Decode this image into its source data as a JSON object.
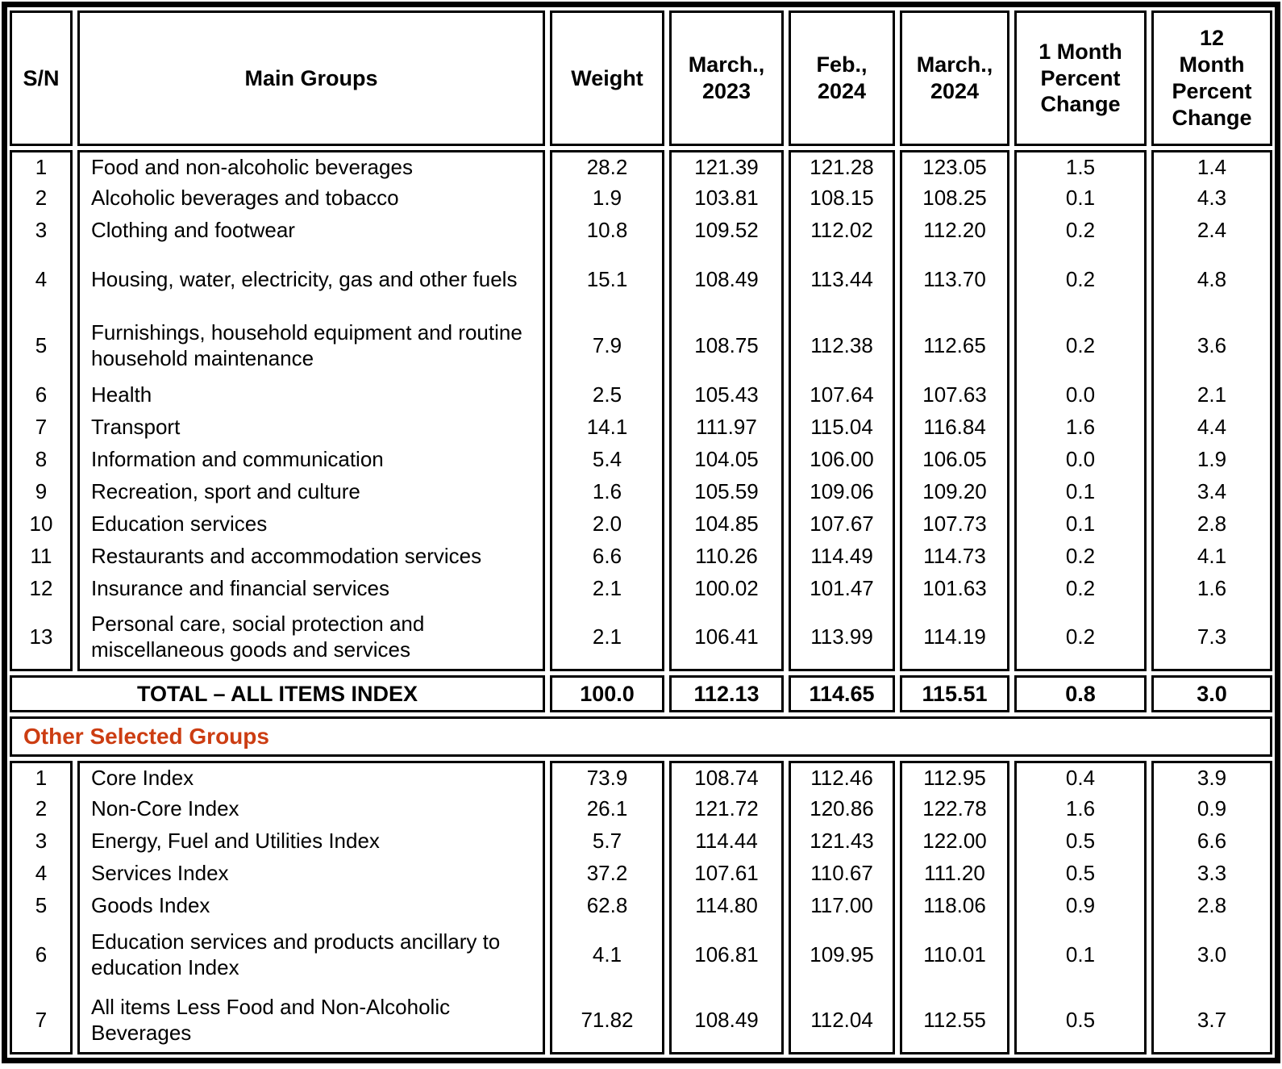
{
  "table": {
    "header": {
      "sn": "S/N",
      "main_groups": "Main Groups",
      "weight": "Weight",
      "mar2023": "March.,\n2023",
      "feb2024": "Feb.,\n2024",
      "mar2024": "March.,\n2024",
      "chg1m": "1 Month\nPercent\nChange",
      "chg12m": "12\nMonth\nPercent\nChange"
    },
    "main_rows": [
      {
        "sn": "1",
        "name": "Food and non-alcoholic beverages",
        "weight": "28.2",
        "mar2023": "121.39",
        "feb2024": "121.28",
        "mar2024": "123.05",
        "chg1m": "1.5",
        "chg12m": "1.4",
        "lines": 1
      },
      {
        "sn": "2",
        "name": "Alcoholic beverages and tobacco",
        "weight": "1.9",
        "mar2023": "103.81",
        "feb2024": "108.15",
        "mar2024": "108.25",
        "chg1m": "0.1",
        "chg12m": "4.3",
        "lines": 1
      },
      {
        "sn": "3",
        "name": "Clothing and footwear",
        "weight": "10.8",
        "mar2023": "109.52",
        "feb2024": "112.02",
        "mar2024": "112.20",
        "chg1m": "0.2",
        "chg12m": "2.4",
        "lines": 1
      },
      {
        "sn": "4",
        "name": "Housing, water, electricity, gas and other fuels",
        "weight": "15.1",
        "mar2023": "108.49",
        "feb2024": "113.44",
        "mar2024": "113.70",
        "chg1m": "0.2",
        "chg12m": "4.8",
        "lines": 2
      },
      {
        "sn": "5",
        "name": "Furnishings, household equipment and routine household maintenance",
        "weight": "7.9",
        "mar2023": "108.75",
        "feb2024": "112.38",
        "mar2024": "112.65",
        "chg1m": "0.2",
        "chg12m": "3.6",
        "lines": 2
      },
      {
        "sn": "6",
        "name": "Health",
        "weight": "2.5",
        "mar2023": "105.43",
        "feb2024": "107.64",
        "mar2024": "107.63",
        "chg1m": "0.0",
        "chg12m": "2.1",
        "lines": 1
      },
      {
        "sn": "7",
        "name": "Transport",
        "weight": "14.1",
        "mar2023": "111.97",
        "feb2024": "115.04",
        "mar2024": "116.84",
        "chg1m": "1.6",
        "chg12m": "4.4",
        "lines": 1
      },
      {
        "sn": "8",
        "name": "Information and communication",
        "weight": "5.4",
        "mar2023": "104.05",
        "feb2024": "106.00",
        "mar2024": "106.05",
        "chg1m": "0.0",
        "chg12m": "1.9",
        "lines": 1
      },
      {
        "sn": "9",
        "name": "Recreation, sport and culture",
        "weight": "1.6",
        "mar2023": "105.59",
        "feb2024": "109.06",
        "mar2024": "109.20",
        "chg1m": "0.1",
        "chg12m": "3.4",
        "lines": 1
      },
      {
        "sn": "10",
        "name": "Education services",
        "weight": "2.0",
        "mar2023": "104.85",
        "feb2024": "107.67",
        "mar2024": "107.73",
        "chg1m": "0.1",
        "chg12m": "2.8",
        "lines": 1
      },
      {
        "sn": "11",
        "name": "Restaurants and accommodation services",
        "weight": "6.6",
        "mar2023": "110.26",
        "feb2024": "114.49",
        "mar2024": "114.73",
        "chg1m": "0.2",
        "chg12m": "4.1",
        "lines": 1
      },
      {
        "sn": "12",
        "name": "Insurance and financial services",
        "weight": "2.1",
        "mar2023": "100.02",
        "feb2024": "101.47",
        "mar2024": "101.63",
        "chg1m": "0.2",
        "chg12m": "1.6",
        "lines": 1
      },
      {
        "sn": "13",
        "name": "Personal care, social protection and miscellaneous goods and services",
        "weight": "2.1",
        "mar2023": "106.41",
        "feb2024": "113.99",
        "mar2024": "114.19",
        "chg1m": "0.2",
        "chg12m": "7.3",
        "lines": 2
      }
    ],
    "total_row": {
      "label": "TOTAL – ALL ITEMS INDEX",
      "weight": "100.0",
      "mar2023": "112.13",
      "feb2024": "114.65",
      "mar2024": "115.51",
      "chg1m": "0.8",
      "chg12m": "3.0"
    },
    "section_title": "Other Selected Groups",
    "other_rows": [
      {
        "sn": "1",
        "name": "Core Index",
        "weight": "73.9",
        "mar2023": "108.74",
        "feb2024": "112.46",
        "mar2024": "112.95",
        "chg1m": "0.4",
        "chg12m": "3.9",
        "lines": 1
      },
      {
        "sn": "2",
        "name": "Non-Core Index",
        "weight": "26.1",
        "mar2023": "121.72",
        "feb2024": "120.86",
        "mar2024": "122.78",
        "chg1m": "1.6",
        "chg12m": "0.9",
        "lines": 1
      },
      {
        "sn": "3",
        "name": "Energy, Fuel and Utilities Index",
        "weight": "5.7",
        "mar2023": "114.44",
        "feb2024": "121.43",
        "mar2024": "122.00",
        "chg1m": "0.5",
        "chg12m": "6.6",
        "lines": 1
      },
      {
        "sn": "4",
        "name": "Services Index",
        "weight": "37.2",
        "mar2023": "107.61",
        "feb2024": "110.67",
        "mar2024": "111.20",
        "chg1m": "0.5",
        "chg12m": "3.3",
        "lines": 1
      },
      {
        "sn": "5",
        "name": "Goods Index",
        "weight": "62.8",
        "mar2023": "114.80",
        "feb2024": "117.00",
        "mar2024": "118.06",
        "chg1m": "0.9",
        "chg12m": "2.8",
        "lines": 1
      },
      {
        "sn": "6",
        "name": "Education services and products ancillary to education Index",
        "weight": "4.1",
        "mar2023": "106.81",
        "feb2024": "109.95",
        "mar2024": "110.01",
        "chg1m": "0.1",
        "chg12m": "3.0",
        "lines": 2
      },
      {
        "sn": "7",
        "name": "All items Less Food and Non-Alcoholic Beverages",
        "weight": "71.82",
        "mar2023": "108.49",
        "feb2024": "112.04",
        "mar2024": "112.55",
        "chg1m": "0.5",
        "chg12m": "3.7",
        "lines": 2
      }
    ],
    "colors": {
      "section_title": "#CC3D12",
      "border": "#000000"
    }
  }
}
